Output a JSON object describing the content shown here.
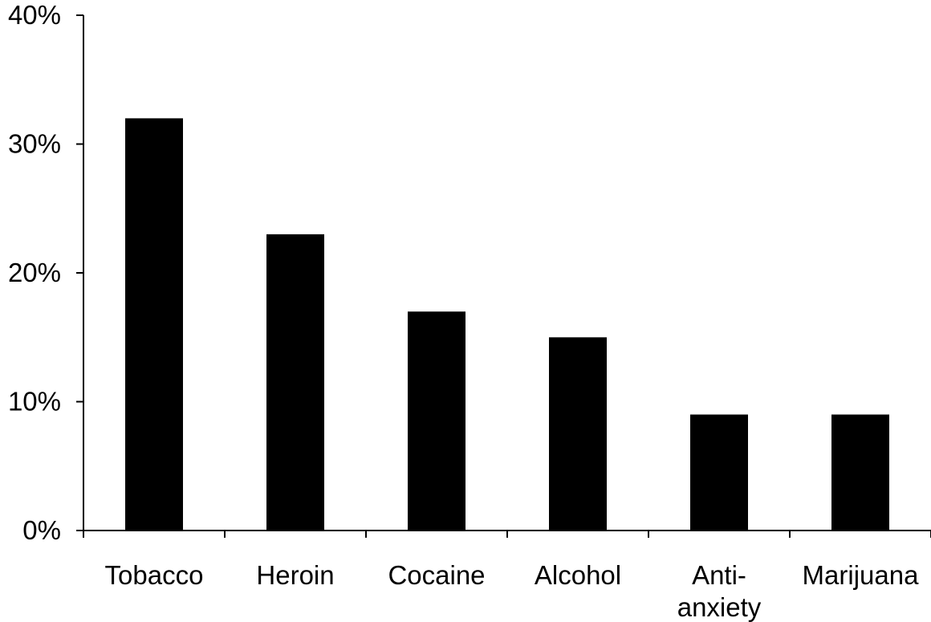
{
  "chart_data": {
    "type": "bar",
    "categories": [
      "Tobacco",
      "Heroin",
      "Cocaine",
      "Alcohol",
      "Anti-\nanxiety",
      "Marijuana"
    ],
    "values": [
      32,
      23,
      17,
      15,
      9,
      9
    ],
    "y_ticks": [
      "0%",
      "10%",
      "20%",
      "30%",
      "40%"
    ],
    "ylim": [
      0,
      40
    ],
    "value_unit": "%",
    "grid": false,
    "bar_color": "#000000",
    "axis_color": "#000000"
  }
}
